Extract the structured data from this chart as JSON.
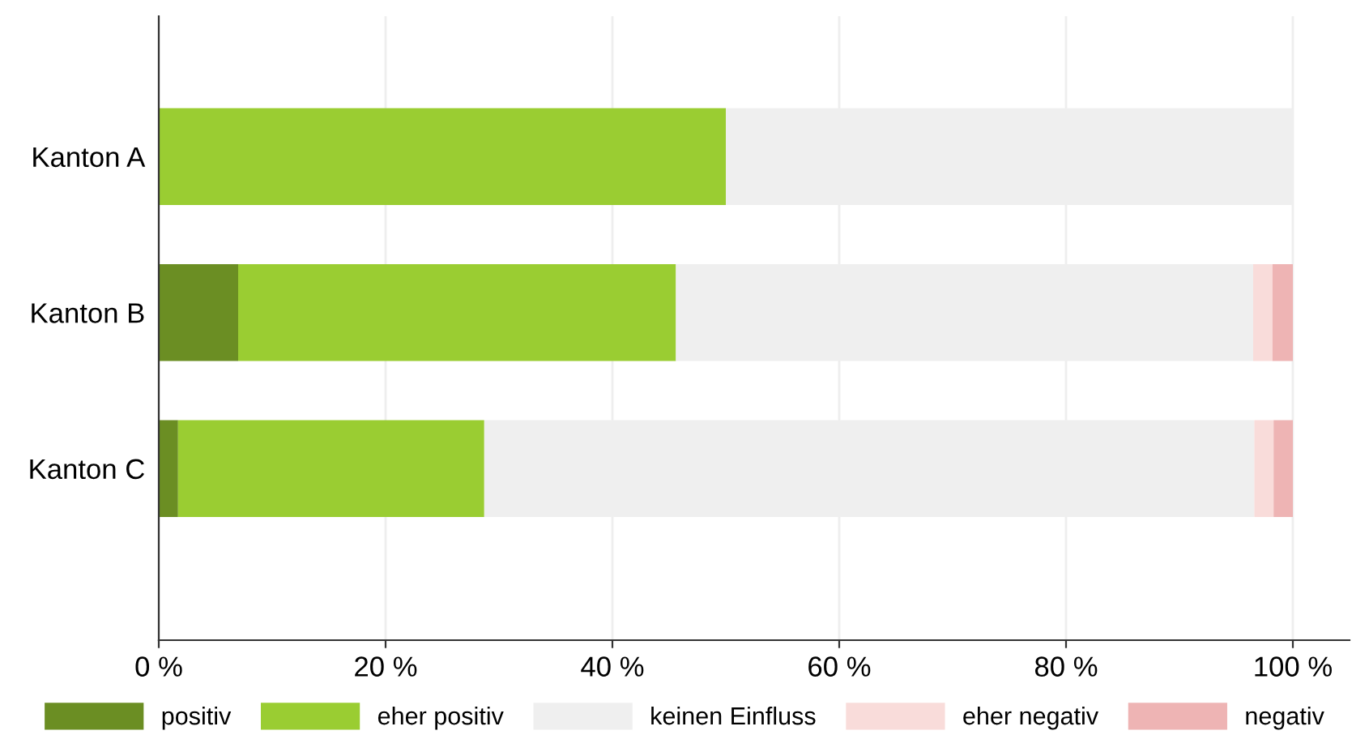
{
  "chart_data": {
    "type": "bar",
    "orientation": "horizontal",
    "stacked": true,
    "categories": [
      "Kanton A",
      "Kanton B",
      "Kanton C"
    ],
    "series": [
      {
        "name": "positiv",
        "color": "#6b8e23",
        "values": [
          0,
          7,
          1.7
        ]
      },
      {
        "name": "eher positiv",
        "color": "#9acd32",
        "values": [
          50,
          38.6,
          27
        ]
      },
      {
        "name": "keinen Einfluss",
        "color": "#efefef",
        "values": [
          50,
          50.9,
          67.9
        ]
      },
      {
        "name": "eher negativ",
        "color": "#f9dcda",
        "values": [
          0,
          1.7,
          1.7
        ]
      },
      {
        "name": "negativ",
        "color": "#eeb4b4",
        "values": [
          0,
          1.8,
          1.7
        ]
      }
    ],
    "xlim": [
      0,
      105
    ],
    "xticks": [
      {
        "value": 0,
        "label": "0 %"
      },
      {
        "value": 20,
        "label": "20 %"
      },
      {
        "value": 40,
        "label": "40 %"
      },
      {
        "value": 60,
        "label": "60 %"
      },
      {
        "value": 80,
        "label": "80 %"
      },
      {
        "value": 100,
        "label": "100 %"
      }
    ],
    "grid": "x",
    "legend": "bottom"
  }
}
